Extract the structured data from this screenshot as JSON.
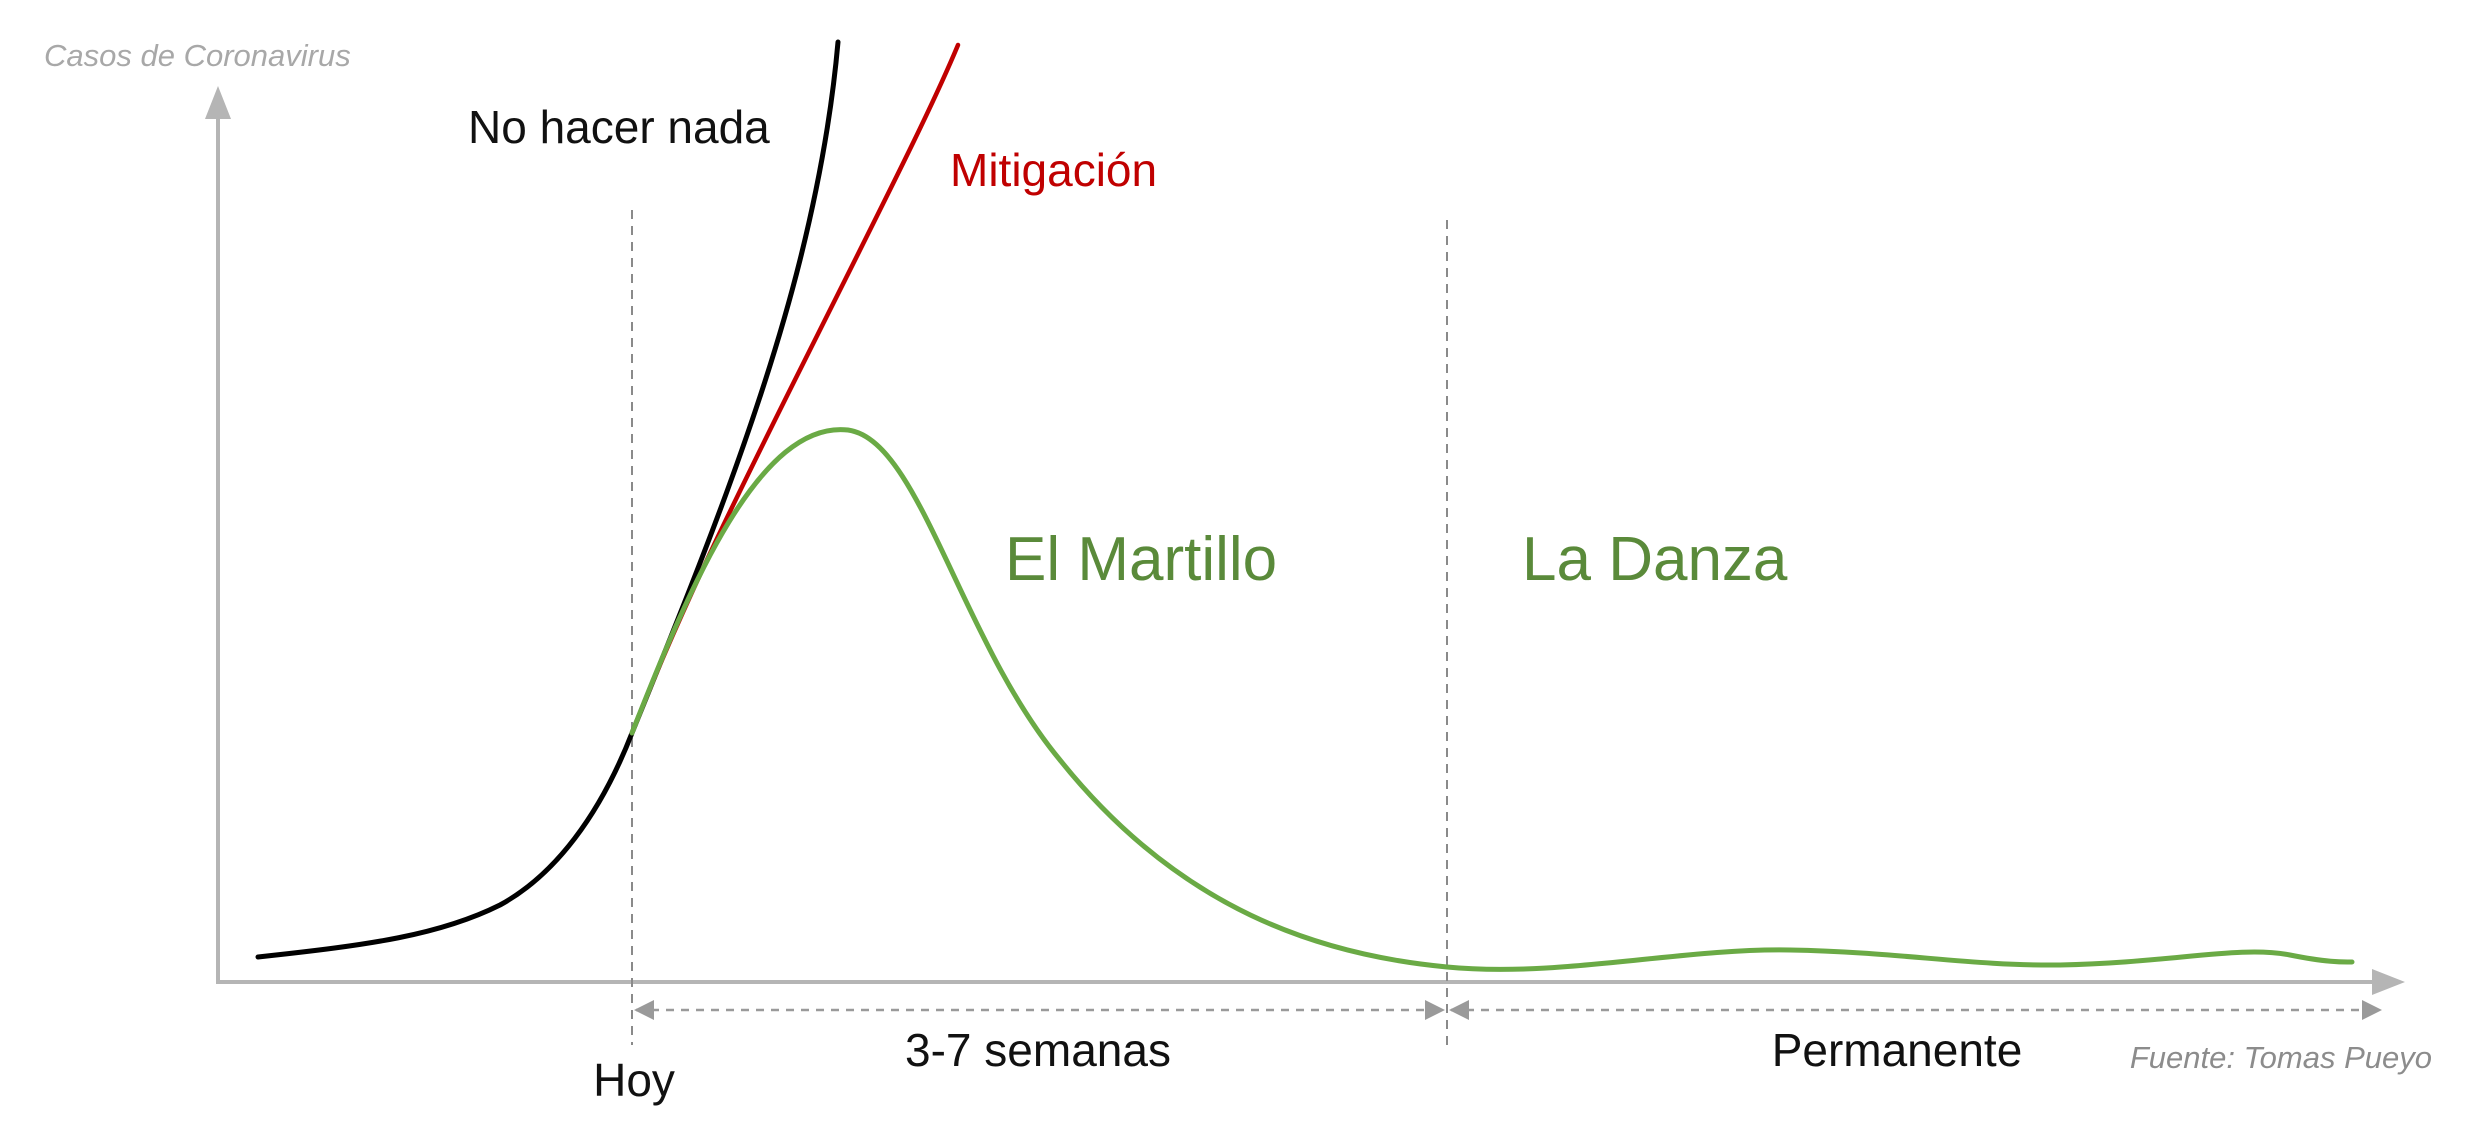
{
  "chart_data": {
    "type": "line",
    "y_axis_title": "Casos de Coronavirus",
    "source": "Fuente: Tomas Pueyo",
    "grid": false,
    "legend": "none",
    "x_marker_labels": [
      "Hoy"
    ],
    "section_labels": [
      "El Martillo",
      "La Danza"
    ],
    "periods": [
      "3-7 semanas",
      "Permanente"
    ],
    "series": [
      {
        "name": "No hacer nada",
        "color": "#000000"
      },
      {
        "name": "Mitigación",
        "color": "#c00000"
      },
      {
        "name": "",
        "color": "#6aaa45"
      }
    ]
  }
}
